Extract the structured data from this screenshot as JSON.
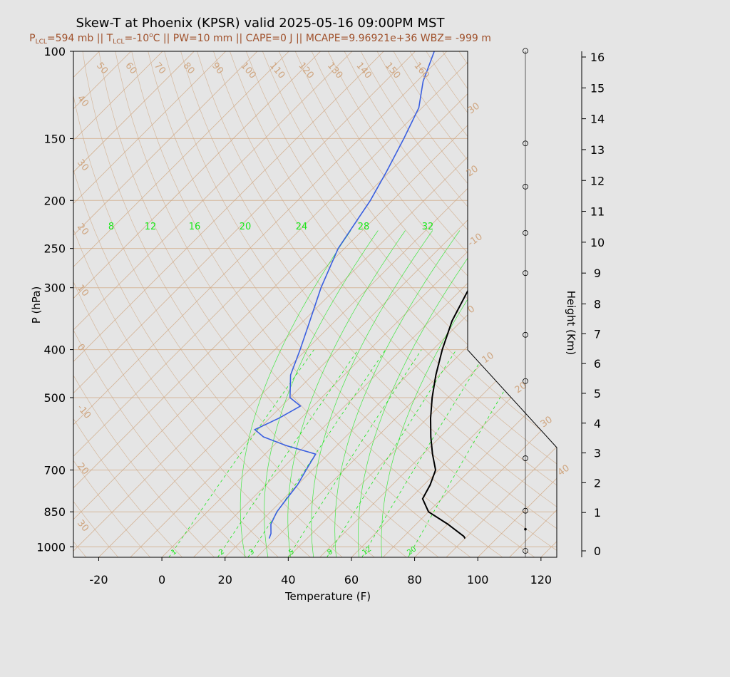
{
  "title": "Skew-T at Phoenix (KPSR) valid 2025-05-16 09:00PM MST",
  "subtitle": {
    "plcl_prefix": "P",
    "plcl_sub": "LCL",
    "plcl_val": "=594 mb || T",
    "tlcl_sub": "LCL",
    "tlcl_val": "=-10",
    "deg": "o",
    "rest": "C || PW=10 mm || CAPE=0 J || MCAPE=9.96921e+36 WBZ= -999 m"
  },
  "colors": {
    "background": "#e5e5e5",
    "temperature": "#000000",
    "dewpoint": "#3a5fe0",
    "isotherm": "#cfa57f",
    "mixing_ratio": "#19e619",
    "title_sub": "#a0522d"
  },
  "chart_data": {
    "type": "line",
    "title": "Skew-T at Phoenix (KPSR) valid 2025-05-16 09:00PM MST",
    "xlabel": "Temperature (F)",
    "ylabel": "P (hPa)",
    "y2label": "Height (Km)",
    "xlim": [
      -28,
      125
    ],
    "ylim": [
      1050,
      100
    ],
    "yscale": "log",
    "x_ticks": [
      "-20",
      "0",
      "20",
      "40",
      "60",
      "80",
      "100",
      "120"
    ],
    "y_ticks": [
      "100",
      "150",
      "200",
      "250",
      "300",
      "400",
      "500",
      "700",
      "850",
      "1000"
    ],
    "height_ticks": [
      "0",
      "1",
      "2",
      "3",
      "4",
      "5",
      "6",
      "7",
      "8",
      "9",
      "10",
      "11",
      "12",
      "13",
      "14",
      "15",
      "16"
    ],
    "isotherm_labels_top": [
      "50",
      "60",
      "70",
      "80",
      "90",
      "100",
      "110",
      "120",
      "130",
      "140",
      "150",
      "160"
    ],
    "isotherm_labels_left": [
      "40",
      "30",
      "20",
      "10",
      "0",
      "-10",
      "20",
      "30"
    ],
    "isotherm_labels_right": [
      "30",
      "20",
      "-10",
      "0",
      "10",
      "20",
      "30",
      "40"
    ],
    "mixing_ratio_labels_top": [
      "8",
      "12",
      "16",
      "20",
      "24",
      "28",
      "32"
    ],
    "mixing_ratio_labels_bottom": [
      "1",
      "2",
      "3",
      "5",
      "8",
      "12",
      "20"
    ],
    "series": [
      {
        "name": "temperature",
        "points": [
          [
            90,
            962
          ],
          [
            89,
            953
          ],
          [
            80,
            900
          ],
          [
            70,
            850
          ],
          [
            64,
            800
          ],
          [
            62,
            750
          ],
          [
            59,
            700
          ],
          [
            53,
            650
          ],
          [
            47,
            600
          ],
          [
            41,
            550
          ],
          [
            35,
            500
          ],
          [
            29,
            450
          ],
          [
            23,
            400
          ],
          [
            17,
            350
          ],
          [
            12,
            300
          ],
          [
            6,
            250
          ],
          [
            0,
            200
          ],
          [
            -4,
            175
          ],
          [
            -9,
            150
          ],
          [
            -13,
            130
          ],
          [
            -14,
            115
          ],
          [
            -16,
            100
          ]
        ]
      },
      {
        "name": "dewpoint",
        "points": [
          [
            28,
            962
          ],
          [
            27,
            940
          ],
          [
            24,
            900
          ],
          [
            22,
            850
          ],
          [
            21,
            800
          ],
          [
            20,
            750
          ],
          [
            18,
            700
          ],
          [
            16,
            650
          ],
          [
            4,
            625
          ],
          [
            -6,
            600
          ],
          [
            -11,
            580
          ],
          [
            -7,
            550
          ],
          [
            -4,
            520
          ],
          [
            -10,
            500
          ],
          [
            -17,
            450
          ],
          [
            -22,
            400
          ],
          [
            -28,
            350
          ],
          [
            -35,
            300
          ],
          [
            -42,
            250
          ],
          [
            -47,
            200
          ],
          [
            -51,
            175
          ],
          [
            -56,
            150
          ],
          [
            -61,
            130
          ],
          [
            -68,
            115
          ],
          [
            -74,
            100
          ]
        ]
      }
    ],
    "wind_barbs": [
      {
        "height_km": 0.0,
        "marker": "open"
      },
      {
        "height_km": 0.7,
        "marker": "dot"
      },
      {
        "height_km": 1.3,
        "marker": "open"
      },
      {
        "height_km": 3.0,
        "marker": "open"
      },
      {
        "height_km": 5.5,
        "marker": "open"
      },
      {
        "height_km": 7.0,
        "marker": "open"
      },
      {
        "height_km": 9.0,
        "marker": "open"
      },
      {
        "height_km": 10.3,
        "marker": "open"
      },
      {
        "height_km": 11.8,
        "marker": "open"
      },
      {
        "height_km": 13.2,
        "marker": "open"
      },
      {
        "height_km": 16.2,
        "marker": "open"
      }
    ]
  }
}
